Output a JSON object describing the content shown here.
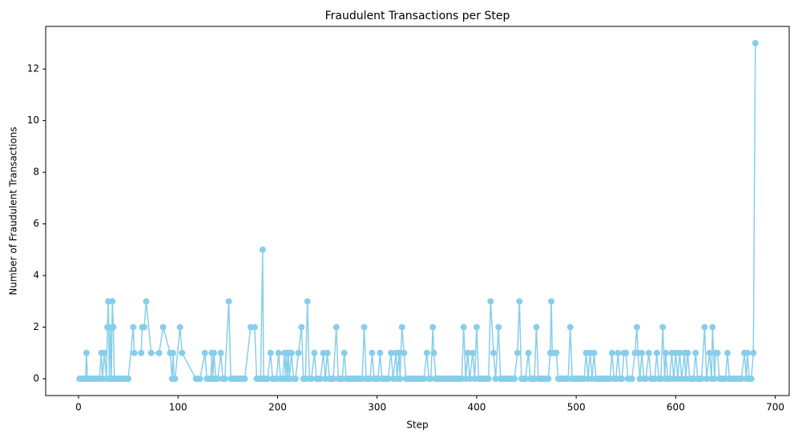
{
  "chart_data": {
    "type": "line",
    "title": "Fraudulent Transactions per Step",
    "x_label": "Step",
    "y_label": "Number of Fraudulent Transactions",
    "color": "#87ceeb",
    "marker": "o",
    "grid": false,
    "x": [
      1,
      3,
      5,
      7,
      8,
      9,
      11,
      13,
      15,
      17,
      19,
      21,
      23,
      24,
      26,
      28,
      29,
      30,
      31,
      32,
      33,
      34,
      35,
      36,
      38,
      40,
      42,
      44,
      46,
      48,
      50,
      55,
      56,
      63,
      64,
      66,
      68,
      73,
      81,
      85,
      92,
      94,
      95,
      96,
      97,
      102,
      104,
      118,
      120,
      122,
      127,
      129,
      131,
      133,
      134,
      135,
      136,
      138,
      140,
      143,
      145,
      147,
      151,
      153,
      155,
      157,
      159,
      161,
      163,
      165,
      167,
      173,
      177,
      179,
      181,
      183,
      185,
      186,
      188,
      190,
      193,
      195,
      197,
      199,
      201,
      203,
      205,
      207,
      208,
      209,
      210,
      211,
      212,
      214,
      216,
      218,
      221,
      224,
      226,
      228,
      230,
      232,
      234,
      237,
      239,
      241,
      243,
      246,
      248,
      250,
      252,
      254,
      256,
      259,
      261,
      263,
      265,
      267,
      269,
      271,
      273,
      275,
      277,
      279,
      281,
      283,
      285,
      287,
      289,
      291,
      293,
      295,
      297,
      299,
      301,
      303,
      305,
      307,
      309,
      311,
      314,
      316,
      319,
      320,
      322,
      323,
      325,
      327,
      329,
      331,
      333,
      335,
      337,
      339,
      341,
      343,
      345,
      347,
      350,
      352,
      354,
      356,
      357,
      359,
      361,
      363,
      365,
      367,
      369,
      371,
      373,
      375,
      377,
      379,
      381,
      383,
      385,
      387,
      389,
      391,
      393,
      396,
      398,
      400,
      402,
      404,
      406,
      408,
      410,
      412,
      414,
      417,
      419,
      422,
      424,
      426,
      428,
      430,
      432,
      434,
      436,
      438,
      441,
      443,
      445,
      447,
      449,
      452,
      454,
      456,
      458,
      460,
      462,
      464,
      466,
      468,
      470,
      472,
      474,
      475,
      476,
      478,
      480,
      482,
      484,
      486,
      488,
      490,
      492,
      494,
      496,
      498,
      500,
      502,
      504,
      506,
      508,
      510,
      512,
      514,
      516,
      518,
      520,
      522,
      524,
      526,
      528,
      530,
      532,
      534,
      536,
      538,
      540,
      542,
      544,
      546,
      548,
      550,
      552,
      554,
      556,
      559,
      561,
      562,
      564,
      566,
      568,
      570,
      573,
      575,
      577,
      579,
      581,
      583,
      585,
      587,
      589,
      590,
      592,
      594,
      596,
      598,
      600,
      602,
      604,
      606,
      609,
      610,
      612,
      614,
      616,
      618,
      620,
      622,
      624,
      626,
      629,
      631,
      634,
      636,
      637,
      639,
      640,
      642,
      644,
      646,
      648,
      650,
      652,
      654,
      656,
      658,
      660,
      662,
      664,
      666,
      669,
      671,
      672,
      674,
      676,
      678,
      680
    ],
    "values": [
      0,
      0,
      0,
      0,
      1,
      0,
      0,
      0,
      0,
      0,
      0,
      0,
      1,
      0,
      1,
      0,
      2,
      3,
      0,
      2,
      0,
      3,
      2,
      0,
      0,
      0,
      0,
      0,
      0,
      0,
      0,
      2,
      1,
      1,
      2,
      2,
      3,
      1,
      1,
      2,
      1,
      0,
      1,
      0,
      0,
      2,
      1,
      0,
      0,
      0,
      1,
      0,
      0,
      0,
      1,
      0,
      1,
      0,
      0,
      1,
      0,
      0,
      3,
      0,
      0,
      0,
      0,
      0,
      0,
      0,
      0,
      2,
      2,
      0,
      0,
      0,
      5,
      0,
      0,
      0,
      1,
      0,
      0,
      0,
      1,
      0,
      0,
      1,
      0,
      1,
      0,
      1,
      0,
      1,
      0,
      0,
      1,
      2,
      0,
      0,
      3,
      0,
      0,
      1,
      0,
      0,
      0,
      1,
      0,
      1,
      0,
      0,
      0,
      2,
      0,
      0,
      0,
      1,
      0,
      0,
      0,
      0,
      0,
      0,
      0,
      0,
      0,
      2,
      0,
      0,
      0,
      1,
      0,
      0,
      0,
      1,
      0,
      0,
      0,
      0,
      1,
      0,
      1,
      0,
      1,
      0,
      2,
      1,
      0,
      0,
      0,
      0,
      0,
      0,
      0,
      0,
      0,
      0,
      1,
      0,
      0,
      2,
      1,
      0,
      0,
      0,
      0,
      0,
      0,
      0,
      0,
      0,
      0,
      0,
      0,
      0,
      0,
      2,
      0,
      1,
      0,
      1,
      0,
      2,
      0,
      0,
      0,
      0,
      0,
      0,
      3,
      1,
      0,
      2,
      0,
      0,
      0,
      0,
      0,
      0,
      0,
      0,
      1,
      3,
      0,
      0,
      0,
      1,
      0,
      0,
      0,
      2,
      0,
      0,
      0,
      0,
      0,
      0,
      1,
      3,
      1,
      1,
      1,
      0,
      0,
      0,
      0,
      0,
      0,
      2,
      0,
      0,
      0,
      0,
      0,
      0,
      0,
      1,
      0,
      1,
      0,
      1,
      0,
      0,
      0,
      0,
      0,
      0,
      0,
      0,
      1,
      0,
      0,
      1,
      0,
      0,
      1,
      1,
      0,
      0,
      0,
      1,
      2,
      1,
      0,
      1,
      0,
      0,
      1,
      0,
      0,
      0,
      1,
      0,
      0,
      2,
      0,
      1,
      0,
      0,
      1,
      0,
      1,
      0,
      1,
      0,
      1,
      0,
      1,
      0,
      0,
      0,
      1,
      0,
      0,
      0,
      2,
      0,
      1,
      0,
      2,
      0,
      1,
      1,
      0,
      0,
      0,
      0,
      1,
      0,
      0,
      0,
      0,
      0,
      0,
      0,
      1,
      0,
      1,
      0,
      0,
      1,
      13
    ],
    "xlim": [
      -33,
      714
    ],
    "xticks": [
      0,
      100,
      200,
      300,
      400,
      500,
      600,
      700
    ],
    "ylim": [
      -0.65,
      13.65
    ],
    "yticks": [
      0,
      2,
      4,
      6,
      8,
      10,
      12
    ]
  }
}
